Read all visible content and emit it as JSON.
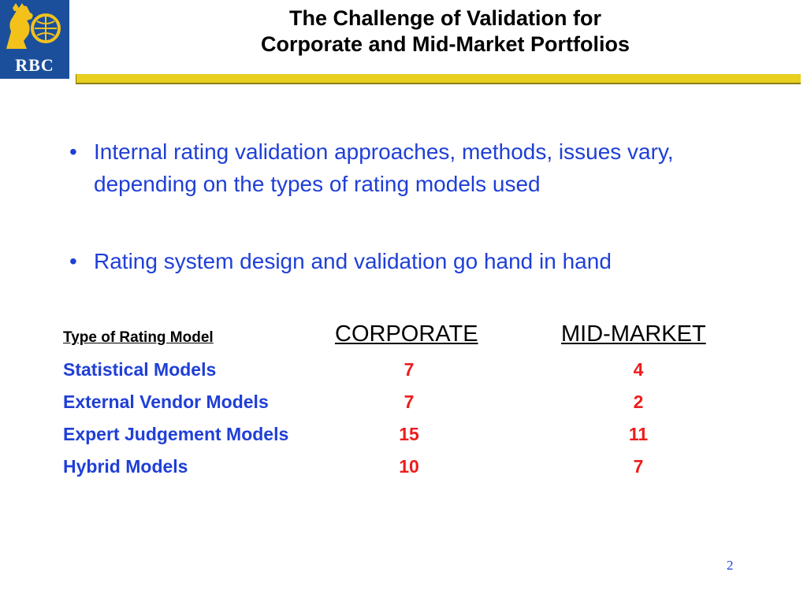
{
  "brand": {
    "logo_text": "RBC",
    "colors": {
      "logo_blue": "#1b4f9c",
      "logo_gold": "#f2c21b",
      "bar_gold": "#e9cf20"
    }
  },
  "title": {
    "line1": "The Challenge of Validation for",
    "line2": "Corporate and Mid-Market Portfolios"
  },
  "bullets": [
    {
      "symbol": "•",
      "text": "Internal rating validation approaches, methods, issues vary, depending on the types of rating models used"
    },
    {
      "symbol": "•",
      "text": "Rating system design and validation go hand in hand"
    }
  ],
  "table": {
    "headers": {
      "type": "Type of Rating Model",
      "corporate": "CORPORATE",
      "mid_market": "MID-MARKET"
    },
    "rows": [
      {
        "label": "Statistical Models",
        "corporate": "7",
        "mid_market": "4"
      },
      {
        "label": "External Vendor Models",
        "corporate": "7",
        "mid_market": "2"
      },
      {
        "label": "Expert Judgement Models",
        "corporate": "15",
        "mid_market": "11"
      },
      {
        "label": "Hybrid Models",
        "corporate": "10",
        "mid_market": "7"
      }
    ]
  },
  "page_number": "2",
  "colors": {
    "bullet_text": "#1f3fd6",
    "values": "#ee1c1c"
  }
}
